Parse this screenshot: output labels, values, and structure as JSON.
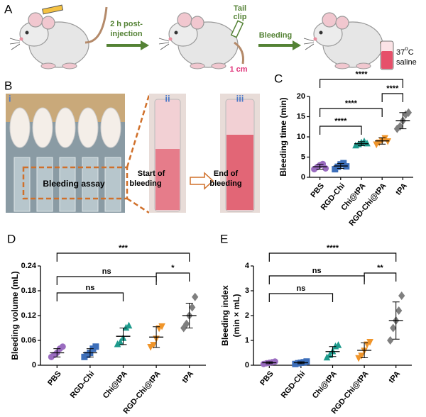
{
  "panel_a": {
    "label": "A",
    "step1": [
      "2 h post-",
      "injection"
    ],
    "step2": "Tail",
    "step2b": "clip",
    "length": "1 cm",
    "step3": "Bleeding",
    "temp_number": "37",
    "temp_sup": "o",
    "temp_unit": "C",
    "medium": "saline"
  },
  "panel_b": {
    "label": "B",
    "sub_i": "i",
    "sub_ii": "ii",
    "sub_iii": "iii",
    "assay": "Bleeding assay",
    "start": [
      "Start of",
      "bleeding"
    ],
    "end": [
      "End of",
      "bleeding"
    ]
  },
  "chart_data": [
    {
      "type": "dot",
      "panel": "C",
      "ylabel": [
        "Bleeding time (min)"
      ],
      "categories": [
        "PBS",
        "RGD-Chi",
        "Chi@tPA",
        "RGD-Chi@tPA",
        "tPA"
      ],
      "ylim": [
        0,
        20
      ],
      "yticks": [
        0,
        5,
        10,
        15,
        20
      ],
      "groups": [
        {
          "color": "#9a6cc0",
          "marker": "circle",
          "values": [
            2.0,
            2.5,
            3.0,
            3.3,
            2.2
          ],
          "mean": 2.6,
          "sd": 0.6
        },
        {
          "color": "#3d6fba",
          "marker": "square",
          "values": [
            2.0,
            2.6,
            3.2,
            3.5,
            2.7
          ],
          "mean": 2.8,
          "sd": 0.6
        },
        {
          "color": "#1e9a8c",
          "marker": "triangle",
          "values": [
            7.8,
            8.1,
            8.5,
            8.8,
            8.3
          ],
          "mean": 8.3,
          "sd": 0.5
        },
        {
          "color": "#f0952a",
          "marker": "triangle-down",
          "values": [
            8.2,
            8.7,
            9.2,
            9.8,
            9.0
          ],
          "mean": 9.0,
          "sd": 0.8
        },
        {
          "color": "#7f7f7f",
          "marker": "diamond",
          "values": [
            12.0,
            12.6,
            14.0,
            15.5,
            16.0
          ],
          "mean": 14.0,
          "sd": 2.0
        }
      ],
      "comparisons": [
        {
          "from": 0,
          "to": 2,
          "label": "****"
        },
        {
          "from": 0,
          "to": 3,
          "label": "****"
        },
        {
          "from": 3,
          "to": 4,
          "label": "****"
        },
        {
          "from": 0,
          "to": 4,
          "label": "****"
        }
      ]
    },
    {
      "type": "dot",
      "panel": "D",
      "ylabel": [
        "Bleeding volume (mL)"
      ],
      "categories": [
        "PBS",
        "RGD-Chi",
        "Chi@tPA",
        "RGD-Chi@tPA",
        "tPA"
      ],
      "ylim": [
        0,
        0.24
      ],
      "yticks": [
        0,
        0.06,
        0.12,
        0.18,
        0.24
      ],
      "groups": [
        {
          "color": "#9a6cc0",
          "marker": "circle",
          "values": [
            0.02,
            0.025,
            0.03,
            0.04,
            0.045
          ],
          "mean": 0.03,
          "sd": 0.01
        },
        {
          "color": "#3d6fba",
          "marker": "square",
          "values": [
            0.02,
            0.025,
            0.03,
            0.04,
            0.045
          ],
          "mean": 0.03,
          "sd": 0.01
        },
        {
          "color": "#1e9a8c",
          "marker": "triangle",
          "values": [
            0.05,
            0.055,
            0.065,
            0.09,
            0.095
          ],
          "mean": 0.07,
          "sd": 0.02
        },
        {
          "color": "#f0952a",
          "marker": "triangle-down",
          "values": [
            0.045,
            0.05,
            0.065,
            0.09,
            0.095
          ],
          "mean": 0.068,
          "sd": 0.025
        },
        {
          "color": "#7f7f7f",
          "marker": "diamond",
          "values": [
            0.09,
            0.1,
            0.12,
            0.14,
            0.165
          ],
          "mean": 0.12,
          "sd": 0.03
        }
      ],
      "comparisons": [
        {
          "from": 0,
          "to": 2,
          "label": "ns"
        },
        {
          "from": 0,
          "to": 3,
          "label": "ns"
        },
        {
          "from": 3,
          "to": 4,
          "label": "*"
        },
        {
          "from": 0,
          "to": 4,
          "label": "***"
        }
      ]
    },
    {
      "type": "dot",
      "panel": "E",
      "ylabel": [
        "Bleeding index",
        "(min × mL)"
      ],
      "categories": [
        "PBS",
        "RGD-Chi",
        "Chi@tPA",
        "RGD-Chi@tPA",
        "tPA"
      ],
      "ylim": [
        0,
        4
      ],
      "yticks": [
        0,
        1,
        2,
        3,
        4
      ],
      "groups": [
        {
          "color": "#9a6cc0",
          "marker": "circle",
          "values": [
            0.05,
            0.08,
            0.1,
            0.12,
            0.15
          ],
          "mean": 0.1,
          "sd": 0.04
        },
        {
          "color": "#3d6fba",
          "marker": "square",
          "values": [
            0.05,
            0.08,
            0.1,
            0.12,
            0.15
          ],
          "mean": 0.1,
          "sd": 0.04
        },
        {
          "color": "#1e9a8c",
          "marker": "triangle",
          "values": [
            0.3,
            0.4,
            0.55,
            0.75,
            0.8
          ],
          "mean": 0.55,
          "sd": 0.2
        },
        {
          "color": "#f0952a",
          "marker": "triangle-down",
          "values": [
            0.3,
            0.4,
            0.6,
            0.85,
            0.95
          ],
          "mean": 0.6,
          "sd": 0.3
        },
        {
          "color": "#7f7f7f",
          "marker": "diamond",
          "values": [
            1.0,
            1.5,
            1.8,
            2.2,
            2.8
          ],
          "mean": 1.8,
          "sd": 0.75
        }
      ],
      "comparisons": [
        {
          "from": 0,
          "to": 2,
          "label": "ns"
        },
        {
          "from": 0,
          "to": 3,
          "label": "ns"
        },
        {
          "from": 3,
          "to": 4,
          "label": "**"
        },
        {
          "from": 0,
          "to": 4,
          "label": "****"
        }
      ]
    }
  ]
}
